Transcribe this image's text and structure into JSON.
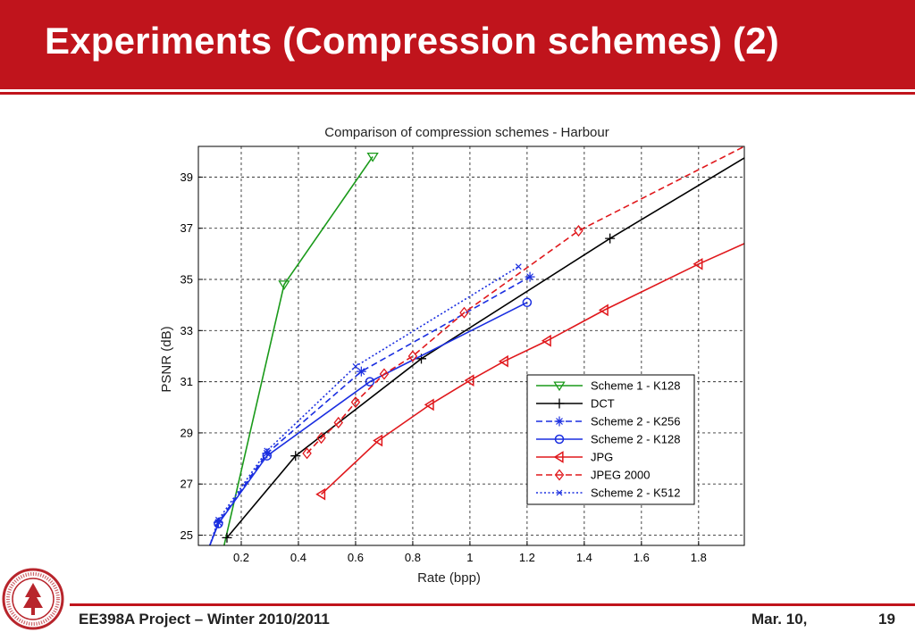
{
  "slide": {
    "title": "Experiments (Compression schemes) (2)",
    "footer_left": "EE398A Project – Winter 2010/2011",
    "footer_date": "Mar. 10,",
    "page_number": "19",
    "accent_color": "#c0141c",
    "seal_text": "LELAND STANFORD JUNIOR UNIVERSITY"
  },
  "chart_data": {
    "type": "line",
    "title": "Comparison of compression schemes - Harbour",
    "xlabel": "Rate (bpp)",
    "ylabel": "PSNR (dB)",
    "xlim": [
      0.05,
      1.96
    ],
    "ylim": [
      24.6,
      40.2
    ],
    "xticks": [
      0.2,
      0.4,
      0.6,
      0.8,
      1,
      1.2,
      1.4,
      1.6,
      1.8
    ],
    "xtick_labels": [
      "0.2",
      "0.4",
      "0.6",
      "0.8",
      "1",
      "1.2",
      "1.4",
      "1.6",
      "1.8"
    ],
    "yticks": [
      25,
      27,
      29,
      31,
      33,
      35,
      37,
      39
    ],
    "ytick_labels": [
      "25",
      "27",
      "29",
      "31",
      "33",
      "35",
      "37",
      "39"
    ],
    "grid": true,
    "legend_position": "bottom-right",
    "series": [
      {
        "name": "Scheme 1 - K128",
        "color": "#1a9a1a",
        "dash": "solid",
        "marker": "triangle-down",
        "x": [
          0.14,
          0.35,
          0.66
        ],
        "y": [
          24.6,
          34.8,
          39.8
        ],
        "markers": [
          1,
          2
        ]
      },
      {
        "name": "DCT",
        "color": "#000000",
        "dash": "solid",
        "marker": "plus",
        "x": [
          0.15,
          0.39,
          0.83,
          1.49,
          1.96
        ],
        "y": [
          24.9,
          28.1,
          31.9,
          36.6,
          39.75
        ],
        "markers": [
          0,
          1,
          2,
          3
        ]
      },
      {
        "name": "Scheme 2 - K256",
        "color": "#1a2ee0",
        "dash": "dashed",
        "marker": "star",
        "x": [
          0.09,
          0.12,
          0.29,
          0.62,
          1.21
        ],
        "y": [
          24.6,
          25.5,
          28.2,
          31.4,
          35.1
        ],
        "markers": [
          1,
          2,
          3,
          4
        ]
      },
      {
        "name": "Scheme 2 - K128",
        "color": "#1a2ee0",
        "dash": "solid",
        "marker": "circle",
        "x": [
          0.09,
          0.12,
          0.29,
          0.65,
          1.2
        ],
        "y": [
          24.6,
          25.45,
          28.1,
          31.0,
          34.1
        ],
        "markers": [
          1,
          2,
          3,
          4
        ]
      },
      {
        "name": "JPG",
        "color": "#e0181c",
        "dash": "solid",
        "marker": "triangle-left",
        "x": [
          0.48,
          0.68,
          0.86,
          1.0,
          1.12,
          1.27,
          1.47,
          1.8,
          1.96
        ],
        "y": [
          26.6,
          28.7,
          30.1,
          31.05,
          31.8,
          32.6,
          33.8,
          35.6,
          36.4
        ],
        "markers": [
          0,
          1,
          2,
          3,
          4,
          5,
          6,
          7
        ]
      },
      {
        "name": "JPEG 2000",
        "color": "#e0181c",
        "dash": "dashed",
        "marker": "diamond",
        "x": [
          0.43,
          0.48,
          0.54,
          0.6,
          0.7,
          0.8,
          0.98,
          1.38,
          1.96
        ],
        "y": [
          28.2,
          28.8,
          29.4,
          30.2,
          31.3,
          32.0,
          33.7,
          36.9,
          40.2
        ],
        "markers": [
          0,
          1,
          2,
          3,
          4,
          5,
          6,
          7
        ]
      },
      {
        "name": "Scheme 2 - K512",
        "color": "#1a2ee0",
        "dash": "dotted",
        "marker": "x",
        "x": [
          0.09,
          0.12,
          0.29,
          0.6,
          1.17
        ],
        "y": [
          24.6,
          25.6,
          28.3,
          31.6,
          35.5
        ],
        "markers": [
          1,
          2,
          3,
          4
        ]
      }
    ]
  }
}
